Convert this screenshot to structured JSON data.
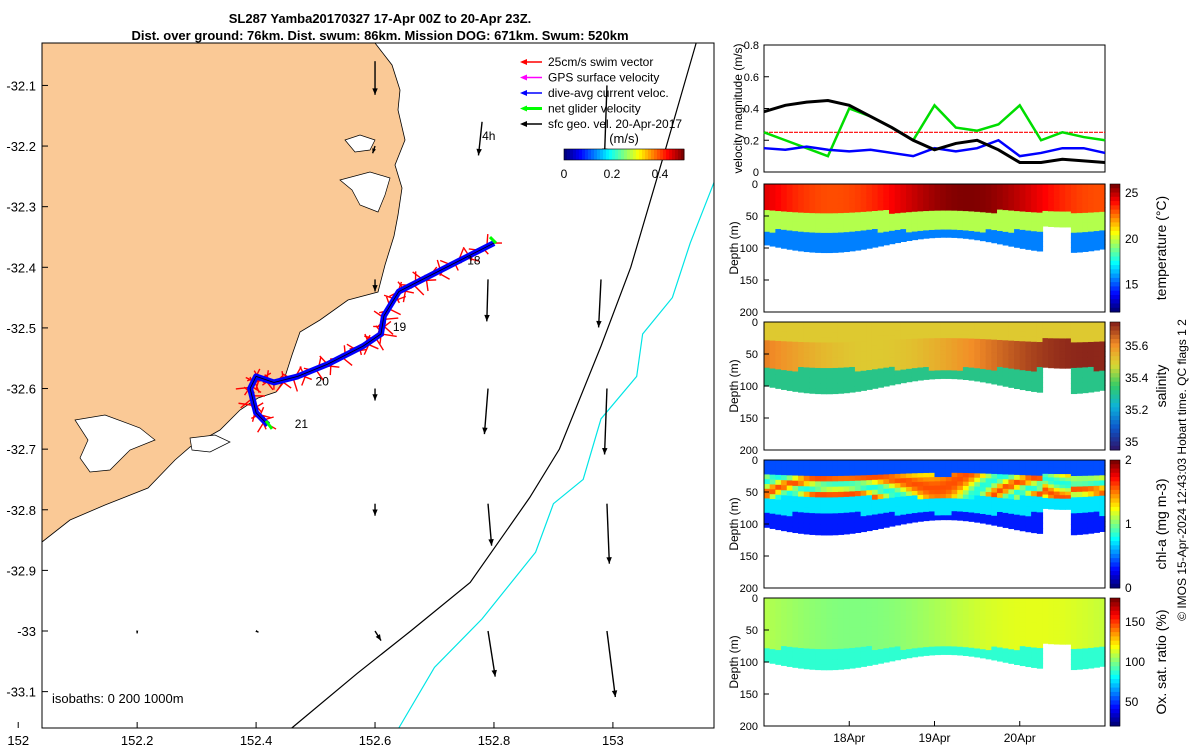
{
  "title_line1": "SL287 Yamba20170327 17-Apr 00Z to 20-Apr 23Z.",
  "title_line2": "Dist. over ground: 76km. Dist. swum: 86km. Mission DOG: 671km. Swum: 520km",
  "colors": {
    "land": "#FAC996",
    "swim": "#FF0000",
    "gps": "#FF00FF",
    "dive_avg": "#0000FF",
    "net": "#00FF00",
    "geo": "#000000",
    "isobath_200": "#000000",
    "isobath_1000": "#00E5E5"
  },
  "chart_data": [
    {
      "type": "scatter",
      "panel": "map",
      "xlabel": "",
      "ylabel": "",
      "xlim": [
        152.04,
        153.17
      ],
      "ylim": [
        -33.16,
        -32.03
      ],
      "xticks": [
        152,
        152.2,
        152.4,
        152.6,
        152.8,
        153
      ],
      "xtick_labels": [
        "152",
        "152.2",
        "152.4",
        "152.6",
        "152.8",
        "153"
      ],
      "yticks": [
        -32.1,
        -32.2,
        -32.3,
        -32.4,
        -32.5,
        -32.6,
        -32.7,
        -32.8,
        -32.9,
        -33,
        -33.1
      ],
      "ytick_labels": [
        "-32.1",
        "-32.2",
        "-32.3",
        "-32.4",
        "-32.5",
        "-32.6",
        "-32.7",
        "-32.8",
        "-32.9",
        "-33",
        "-33.1"
      ],
      "legend": [
        {
          "label": "25cm/s swim vector",
          "color": "#FF0000"
        },
        {
          "label": "GPS surface velocity",
          "color": "#FF00FF"
        },
        {
          "label": "dive-avg current veloc.",
          "color": "#0000FF"
        },
        {
          "label": "net glider velocity",
          "color": "#00FF00"
        },
        {
          "label": "sfc geo. vel. 20-Apr-2017",
          "color": "#000000"
        }
      ],
      "legend_position": "top-right",
      "colorbar": {
        "label": "(m/s)",
        "ticks": [
          "0",
          "0.2",
          "0.4"
        ],
        "range": [
          0,
          0.5
        ]
      },
      "isobaths_label": "isobaths: 0   200  1000m",
      "track_labels": [
        {
          "text": "4h",
          "lon": 152.78,
          "lat": -32.19
        },
        {
          "text": "18",
          "lon": 152.755,
          "lat": -32.395
        },
        {
          "text": "19",
          "lon": 152.63,
          "lat": -32.505
        },
        {
          "text": "20",
          "lon": 152.5,
          "lat": -32.595
        },
        {
          "text": "21",
          "lon": 152.465,
          "lat": -32.665
        }
      ],
      "track": [
        [
          152.8,
          -32.36
        ],
        [
          152.74,
          -32.39
        ],
        [
          152.68,
          -32.42
        ],
        [
          152.64,
          -32.44
        ],
        [
          152.615,
          -32.48
        ],
        [
          152.61,
          -32.51
        ],
        [
          152.58,
          -32.53
        ],
        [
          152.52,
          -32.56
        ],
        [
          152.47,
          -32.58
        ],
        [
          152.43,
          -32.59
        ],
        [
          152.4,
          -32.58
        ],
        [
          152.39,
          -32.6
        ],
        [
          152.4,
          -32.64
        ],
        [
          152.42,
          -32.66
        ]
      ],
      "isobath_200": [
        [
          153.14,
          -32.03
        ],
        [
          153.09,
          -32.2
        ],
        [
          153.03,
          -32.4
        ],
        [
          152.98,
          -32.53
        ],
        [
          152.91,
          -32.7
        ],
        [
          152.86,
          -32.78
        ],
        [
          152.76,
          -32.92
        ],
        [
          152.66,
          -33.0
        ],
        [
          152.57,
          -33.07
        ],
        [
          152.46,
          -33.16
        ]
      ],
      "isobath_1000": [
        [
          153.17,
          -32.26
        ],
        [
          153.13,
          -32.36
        ],
        [
          153.1,
          -32.45
        ],
        [
          153.05,
          -32.51
        ],
        [
          153.04,
          -32.58
        ],
        [
          152.98,
          -32.65
        ],
        [
          152.95,
          -32.75
        ],
        [
          152.9,
          -32.79
        ],
        [
          152.87,
          -32.87
        ],
        [
          152.78,
          -32.98
        ],
        [
          152.7,
          -33.06
        ],
        [
          152.64,
          -33.16
        ]
      ],
      "geo_vectors": [
        {
          "lon": 152.6,
          "lat": -32.06,
          "u": 0.0,
          "v": -0.28
        },
        {
          "lon": 152.78,
          "lat": -32.16,
          "u": -0.03,
          "v": -0.28
        },
        {
          "lon": 152.99,
          "lat": -32.1,
          "u": -0.02,
          "v": -0.58
        },
        {
          "lon": 152.6,
          "lat": -32.2,
          "u": -0.02,
          "v": -0.06
        },
        {
          "lon": 152.6,
          "lat": -32.42,
          "u": 0.0,
          "v": -0.1
        },
        {
          "lon": 152.79,
          "lat": -32.42,
          "u": -0.01,
          "v": -0.35
        },
        {
          "lon": 152.98,
          "lat": -32.42,
          "u": -0.02,
          "v": -0.4
        },
        {
          "lon": 152.6,
          "lat": -32.6,
          "u": 0.0,
          "v": -0.1
        },
        {
          "lon": 152.79,
          "lat": -32.6,
          "u": -0.03,
          "v": -0.38
        },
        {
          "lon": 152.99,
          "lat": -32.6,
          "u": -0.02,
          "v": -0.55
        },
        {
          "lon": 152.6,
          "lat": -32.79,
          "u": 0.0,
          "v": -0.1
        },
        {
          "lon": 152.79,
          "lat": -32.79,
          "u": 0.03,
          "v": -0.35
        },
        {
          "lon": 152.99,
          "lat": -32.79,
          "u": 0.02,
          "v": -0.5
        },
        {
          "lon": 152.6,
          "lat": -33.0,
          "u": 0.05,
          "v": -0.08
        },
        {
          "lon": 152.79,
          "lat": -33.0,
          "u": 0.06,
          "v": -0.38
        },
        {
          "lon": 152.99,
          "lat": -33.0,
          "u": 0.07,
          "v": -0.55
        },
        {
          "lon": 152.2,
          "lat": -33.0,
          "u": 0.0,
          "v": -0.02
        },
        {
          "lon": 152.4,
          "lat": -33.0,
          "u": 0.02,
          "v": -0.01
        }
      ]
    },
    {
      "type": "line",
      "panel": "velocity",
      "xlabel": "",
      "ylabel": "velocity magnitude (m/s)",
      "xlim": [
        0,
        4
      ],
      "ylim": [
        0,
        0.8
      ],
      "yticks": [
        0,
        0.2,
        0.4,
        0.6,
        0.8
      ],
      "ytick_labels": [
        "0",
        "0.2",
        "0.4",
        "0.6",
        "0.8"
      ],
      "x": [
        0,
        0.25,
        0.5,
        0.75,
        1.0,
        1.25,
        1.5,
        1.75,
        2.0,
        2.25,
        2.5,
        2.75,
        3.0,
        3.25,
        3.5,
        3.75,
        4.0
      ],
      "series": [
        {
          "color": "#FF0000",
          "values": [
            0.25,
            0.25,
            0.25,
            0.25,
            0.25,
            0.25,
            0.25,
            0.25,
            0.25,
            0.25,
            0.25,
            0.25,
            0.25,
            0.25,
            0.25,
            0.25,
            0.25
          ]
        },
        {
          "color": "#00DD00",
          "values": [
            0.25,
            0.2,
            0.15,
            0.1,
            0.4,
            0.35,
            0.28,
            0.2,
            0.42,
            0.28,
            0.26,
            0.3,
            0.42,
            0.2,
            0.25,
            0.22,
            0.2
          ]
        },
        {
          "color": "#0000FF",
          "values": [
            0.15,
            0.14,
            0.16,
            0.14,
            0.13,
            0.14,
            0.12,
            0.1,
            0.15,
            0.13,
            0.15,
            0.2,
            0.1,
            0.12,
            0.15,
            0.15,
            0.12
          ]
        },
        {
          "color": "#000000",
          "values": [
            0.38,
            0.42,
            0.44,
            0.45,
            0.42,
            0.35,
            0.28,
            0.2,
            0.14,
            0.18,
            0.2,
            0.14,
            0.06,
            0.06,
            0.08,
            0.07,
            0.06
          ]
        }
      ]
    },
    {
      "type": "heatmap",
      "panel": "temperature",
      "ylabel": "Depth (m)",
      "cbar_label": "temperature (°C)",
      "yticks": [
        "0",
        "50",
        "100",
        "150",
        "200"
      ],
      "cbar_ticks": [
        "25",
        "20",
        "15"
      ],
      "cbar_range": [
        12,
        26
      ]
    },
    {
      "type": "heatmap",
      "panel": "salinity",
      "ylabel": "Depth (m)",
      "cbar_label": "salinity",
      "yticks": [
        "0",
        "50",
        "100",
        "150",
        "200"
      ],
      "cbar_ticks": [
        "35.6",
        "35.4",
        "35.2",
        "35"
      ],
      "cbar_range": [
        34.95,
        35.75
      ]
    },
    {
      "type": "heatmap",
      "panel": "chla",
      "ylabel": "Depth (m)",
      "cbar_label": "chl-a (mg m-3)",
      "yticks": [
        "0",
        "50",
        "100",
        "150",
        "200"
      ],
      "cbar_ticks": [
        "2",
        "1",
        "0"
      ],
      "cbar_range": [
        0,
        2
      ]
    },
    {
      "type": "heatmap",
      "panel": "oxygen",
      "ylabel": "Depth (m)",
      "cbar_label": "Ox. sat. ratio (%)",
      "yticks": [
        "0",
        "50",
        "100",
        "150",
        "200"
      ],
      "xtick_labels": [
        "18Apr",
        "19Apr",
        "20Apr"
      ],
      "cbar_ticks": [
        "150",
        "100",
        "50"
      ],
      "cbar_range": [
        20,
        180
      ]
    }
  ],
  "footer_stamp": "© IMOS 15-Apr-2024 12:43:03 Hobart time. QC flags 1  2"
}
